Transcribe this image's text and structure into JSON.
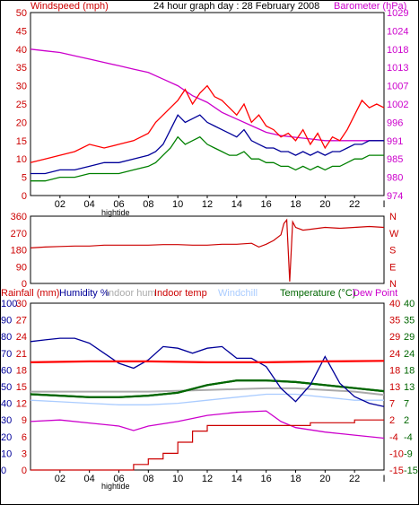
{
  "chart_data": [
    {
      "type": "line",
      "title": "24 hour graph day : 28 February 2008",
      "left_label": "Windspeed (mph)",
      "right_label": "Barometer (hPa)",
      "x_label": "hightide",
      "x_ticks": [
        "02",
        "04",
        "06",
        "08",
        "10",
        "12",
        "14",
        "16",
        "18",
        "20",
        "22"
      ],
      "end_tick": "I",
      "ylim_left": [
        0,
        50
      ],
      "y_ticks_left": [
        0,
        5,
        10,
        15,
        20,
        25,
        30,
        35,
        40,
        45,
        50
      ],
      "ylim_right": [
        974,
        1029
      ],
      "y_ticks_right": [
        974,
        980,
        985,
        991,
        996,
        1002,
        1007,
        1013,
        1018,
        1024,
        1029
      ],
      "series": [
        {
          "color": "#ff0000",
          "x": [
            0,
            1,
            2,
            3,
            4,
            5,
            6,
            7,
            8,
            8.5,
            9,
            9.5,
            10,
            10.5,
            11,
            11.5,
            12,
            12.5,
            13,
            13.5,
            14,
            14.5,
            15,
            15.5,
            16,
            16.5,
            17,
            17.5,
            18,
            18.5,
            19,
            19.5,
            20,
            20.5,
            21,
            21.5,
            22,
            22.5,
            23,
            23.5,
            24
          ],
          "values": [
            9,
            10,
            11,
            12,
            14,
            13,
            14,
            15,
            17,
            20,
            22,
            24,
            26,
            29,
            25,
            28,
            30,
            27,
            26,
            24,
            22,
            25,
            20,
            22,
            19,
            18,
            16,
            17,
            15,
            18,
            14,
            17,
            13,
            16,
            15,
            18,
            22,
            26,
            24,
            25,
            24
          ]
        },
        {
          "color": "#000099",
          "x": [
            0,
            1,
            2,
            3,
            4,
            5,
            6,
            7,
            8,
            8.5,
            9,
            9.5,
            10,
            10.5,
            11,
            11.5,
            12,
            12.5,
            13,
            13.5,
            14,
            14.5,
            15,
            15.5,
            16,
            16.5,
            17,
            17.5,
            18,
            18.5,
            19,
            19.5,
            20,
            20.5,
            21,
            21.5,
            22,
            22.5,
            23,
            23.5,
            24
          ],
          "values": [
            6,
            6,
            7,
            7,
            8,
            9,
            9,
            10,
            11,
            12,
            14,
            18,
            22,
            20,
            21,
            22,
            20,
            19,
            18,
            17,
            16,
            18,
            15,
            14,
            13,
            13,
            12,
            12,
            11,
            12,
            11,
            12,
            11,
            12,
            12,
            13,
            14,
            14,
            15,
            15,
            15
          ]
        },
        {
          "color": "#008000",
          "x": [
            0,
            1,
            2,
            3,
            4,
            5,
            6,
            7,
            8,
            8.5,
            9,
            9.5,
            10,
            10.5,
            11,
            11.5,
            12,
            12.5,
            13,
            13.5,
            14,
            14.5,
            15,
            15.5,
            16,
            16.5,
            17,
            17.5,
            18,
            18.5,
            19,
            19.5,
            20,
            20.5,
            21,
            21.5,
            22,
            22.5,
            23,
            23.5,
            24
          ],
          "values": [
            4,
            4,
            5,
            5,
            6,
            6,
            6,
            7,
            8,
            9,
            11,
            13,
            16,
            14,
            15,
            16,
            14,
            13,
            12,
            11,
            11,
            12,
            10,
            10,
            9,
            9,
            8,
            8,
            7,
            8,
            7,
            8,
            7,
            8,
            8,
            9,
            10,
            10,
            11,
            11,
            11
          ]
        },
        {
          "color": "#cc00cc",
          "x": [
            0,
            1,
            2,
            3,
            4,
            5,
            6,
            7,
            8,
            9,
            10,
            11,
            12,
            13,
            14,
            15,
            16,
            17,
            18,
            19,
            20,
            21,
            22,
            23,
            24
          ],
          "values": [
            1018,
            1017.5,
            1017,
            1016,
            1015,
            1014,
            1013,
            1012,
            1011,
            1009,
            1007,
            1004,
            1002,
            999,
            997,
            995,
            993,
            992,
            991.5,
            991,
            990.5,
            990.5,
            990.5,
            990.5,
            990.5
          ]
        }
      ]
    },
    {
      "type": "line",
      "y_ticks_left": [
        0,
        90,
        180,
        270,
        360
      ],
      "ylim": [
        0,
        360
      ],
      "dir_labels": [
        "N",
        "W",
        "S",
        "E",
        "N"
      ],
      "series": [
        {
          "color": "#cc0000",
          "x": [
            0,
            1,
            2,
            3,
            4,
            5,
            6,
            7,
            8,
            9,
            10,
            11,
            12,
            13,
            14,
            15,
            15.5,
            16,
            16.5,
            17,
            17.2,
            17.4,
            17.6,
            17.8,
            18,
            18.5,
            19,
            20,
            21,
            22,
            23,
            24
          ],
          "values": [
            190,
            195,
            198,
            200,
            200,
            205,
            205,
            205,
            205,
            208,
            208,
            205,
            205,
            210,
            210,
            215,
            195,
            210,
            230,
            260,
            320,
            340,
            10,
            330,
            300,
            285,
            290,
            300,
            295,
            300,
            305,
            300
          ]
        }
      ]
    },
    {
      "type": "line",
      "labels": [
        "Rainfall (mm)",
        "Humidity %",
        "Indoor hum",
        "Indoor temp",
        "Windchill",
        "Temperature (°C)",
        "Dew Point"
      ],
      "x_label": "hightide",
      "x_ticks": [
        "02",
        "04",
        "06",
        "08",
        "10",
        "12",
        "14",
        "16",
        "18",
        "20",
        "22"
      ],
      "end_tick": "I",
      "rain_ticks": [
        0,
        3,
        6,
        9,
        12,
        15,
        18,
        21,
        24,
        27,
        30
      ],
      "hum_ticks": [
        0,
        10,
        20,
        30,
        40,
        50,
        60,
        70,
        80,
        90,
        100
      ],
      "temp_ticks_a": [
        -15,
        -10,
        -4,
        2,
        7,
        13,
        18,
        24,
        29,
        35,
        40
      ],
      "temp_ticks_b": [
        -15,
        -9,
        -4,
        2,
        7,
        13,
        18,
        24,
        29,
        35,
        40
      ],
      "series": [
        {
          "name": "Humidity %",
          "color": "#000099",
          "x": [
            0,
            1,
            2,
            3,
            4,
            5,
            6,
            7,
            8,
            9,
            10,
            11,
            12,
            13,
            14,
            15,
            16,
            17,
            18,
            19,
            20,
            21,
            22,
            23,
            24
          ],
          "values": [
            77,
            78,
            79,
            79,
            76,
            70,
            64,
            61,
            66,
            74,
            73,
            70,
            73,
            74,
            67,
            67,
            62,
            49,
            41,
            51,
            68,
            52,
            44,
            40,
            38
          ]
        },
        {
          "name": "Indoor temp",
          "color": "#ff0000",
          "x": [
            0,
            4,
            8,
            12,
            16,
            20,
            24
          ],
          "values": [
            20.5,
            20.8,
            20.8,
            20.5,
            20.5,
            20.8,
            21
          ]
        },
        {
          "name": "Indoor hum",
          "color": "#aaaaaa",
          "x": [
            0,
            4,
            8,
            12,
            16,
            18,
            20,
            22,
            24
          ],
          "values": [
            47,
            47,
            47,
            48,
            49,
            49,
            48,
            47,
            45
          ]
        },
        {
          "name": "Temperature (°C)",
          "color": "#006600",
          "x": [
            0,
            2,
            4,
            6,
            8,
            10,
            12,
            14,
            16,
            18,
            20,
            22,
            24
          ],
          "values": [
            10,
            9.5,
            9,
            9,
            9.5,
            10.5,
            13,
            14.5,
            14.5,
            14,
            13,
            12,
            11
          ]
        },
        {
          "name": "Windchill",
          "color": "#aaccff",
          "x": [
            0,
            2,
            4,
            6,
            8,
            10,
            12,
            14,
            16,
            18,
            20,
            22,
            24
          ],
          "values": [
            8,
            7.5,
            7,
            6.5,
            6.5,
            7,
            8,
            9,
            10,
            10,
            9,
            8,
            8
          ]
        },
        {
          "name": "Dew Point",
          "color": "#cc00cc",
          "x": [
            0,
            2,
            4,
            6,
            7,
            8,
            10,
            12,
            14,
            16,
            17,
            18,
            20,
            22,
            24
          ],
          "values": [
            1,
            1.5,
            0.5,
            -0.5,
            -2,
            -0.5,
            1,
            3,
            4,
            4.5,
            1,
            -1,
            -2.5,
            -3.5,
            -4.5
          ]
        },
        {
          "name": "Rainfall (mm)",
          "color": "#cc0000",
          "x": [
            0,
            6,
            7,
            8,
            9,
            10,
            11,
            12,
            13,
            16,
            19,
            20,
            22,
            24
          ],
          "values": [
            0,
            0,
            1,
            2,
            3,
            5,
            7,
            8,
            8,
            8,
            8.5,
            8.5,
            9,
            9
          ]
        }
      ]
    }
  ]
}
